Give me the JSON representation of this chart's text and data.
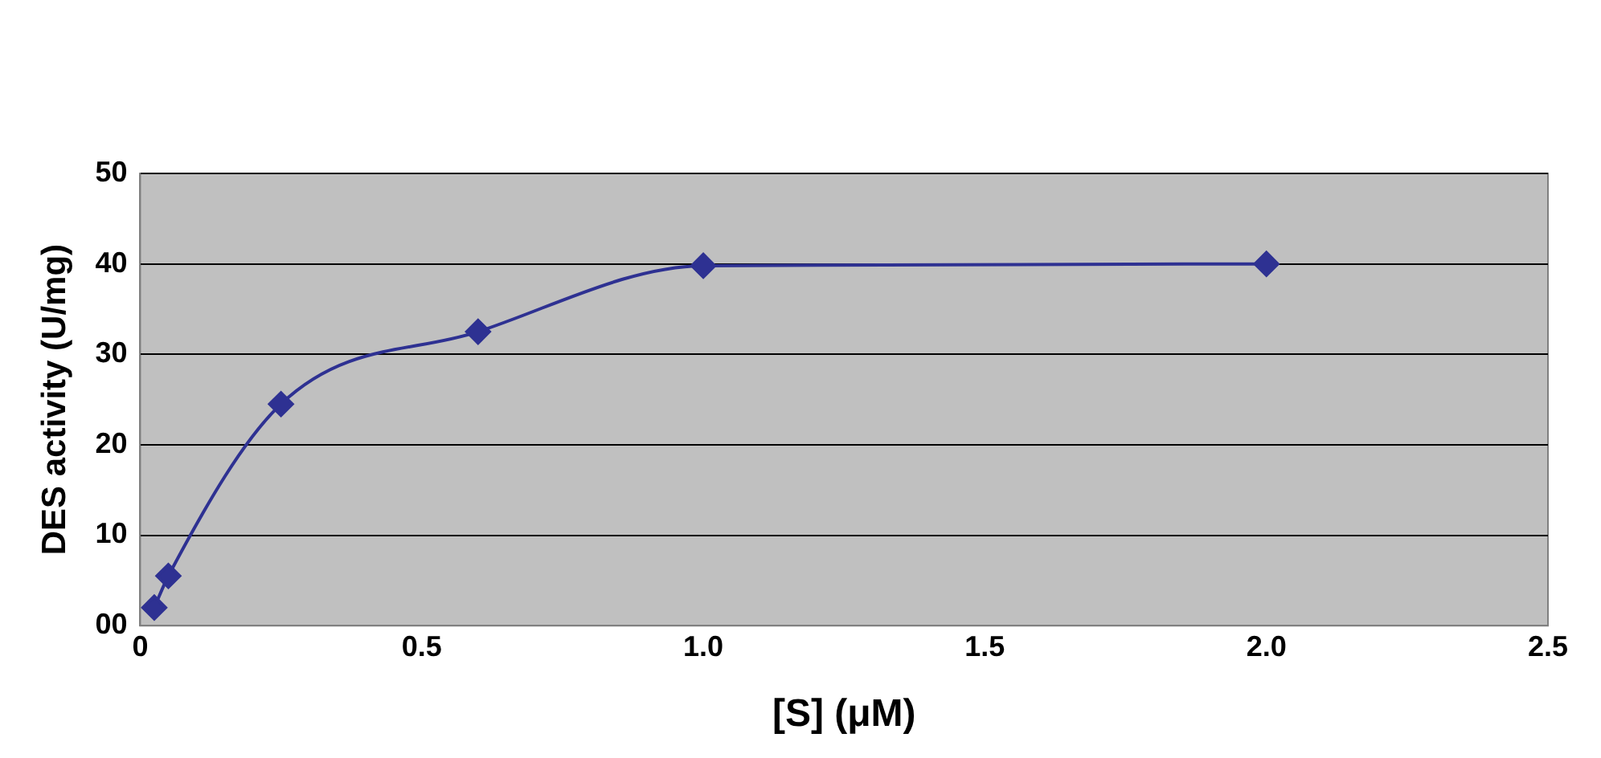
{
  "chart_data": {
    "type": "line",
    "xlabel": "[S] (μM)",
    "ylabel": "DES activity (U/mg)",
    "x": [
      0.025,
      0.05,
      0.25,
      0.6,
      1.0,
      2.0
    ],
    "series": [
      {
        "color": "#2e3192",
        "values": [
          2,
          5.5,
          24.5,
          32.5,
          39.8,
          40
        ]
      }
    ],
    "xlim": [
      0,
      2.5
    ],
    "xticks": [
      0,
      {
        "value": 0.5,
        "label": "0.5"
      },
      {
        "value": 1,
        "label": "1.0"
      },
      {
        "value": 1.5,
        "label": "1.5"
      },
      {
        "value": 2,
        "label": "2.0"
      },
      {
        "value": 2.5,
        "label": "2.5"
      }
    ],
    "ylim": [
      0,
      50
    ],
    "yticks": [
      {
        "value": 0,
        "label": "00"
      },
      10,
      20,
      30,
      40,
      50
    ],
    "grid": "y",
    "legend": false,
    "marker": "diamond",
    "line_style": "solid"
  }
}
